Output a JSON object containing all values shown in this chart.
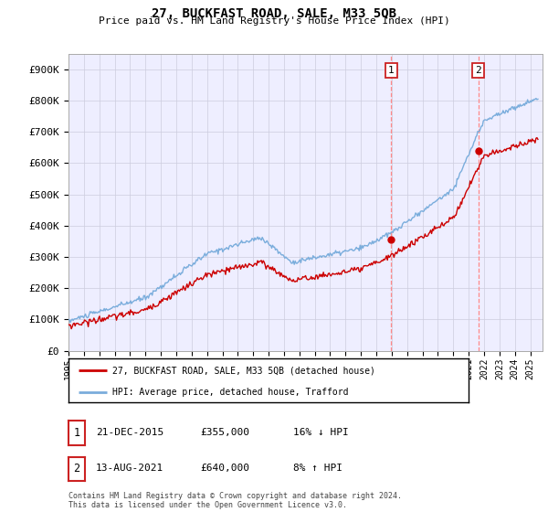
{
  "title": "27, BUCKFAST ROAD, SALE, M33 5QB",
  "subtitle": "Price paid vs. HM Land Registry's House Price Index (HPI)",
  "ylabel_ticks": [
    "£0",
    "£100K",
    "£200K",
    "£300K",
    "£400K",
    "£500K",
    "£600K",
    "£700K",
    "£800K",
    "£900K"
  ],
  "ytick_values": [
    0,
    100000,
    200000,
    300000,
    400000,
    500000,
    600000,
    700000,
    800000,
    900000
  ],
  "ylim": [
    0,
    950000
  ],
  "xlim_start": 1995.0,
  "xlim_end": 2025.8,
  "sale1_x": 2015.97,
  "sale1_y": 355000,
  "sale2_x": 2021.62,
  "sale2_y": 640000,
  "hpi_color": "#7aaddc",
  "price_color": "#cc0000",
  "vline_color": "#ff8888",
  "marker_color": "#cc0000",
  "legend_label1": "27, BUCKFAST ROAD, SALE, M33 5QB (detached house)",
  "legend_label2": "HPI: Average price, detached house, Trafford",
  "table_row1": [
    "1",
    "21-DEC-2015",
    "£355,000",
    "16% ↓ HPI"
  ],
  "table_row2": [
    "2",
    "13-AUG-2021",
    "£640,000",
    "8% ↑ HPI"
  ],
  "footer": "Contains HM Land Registry data © Crown copyright and database right 2024.\nThis data is licensed under the Open Government Licence v3.0.",
  "background_color": "#ffffff",
  "plot_bg_color": "#eeeeff"
}
